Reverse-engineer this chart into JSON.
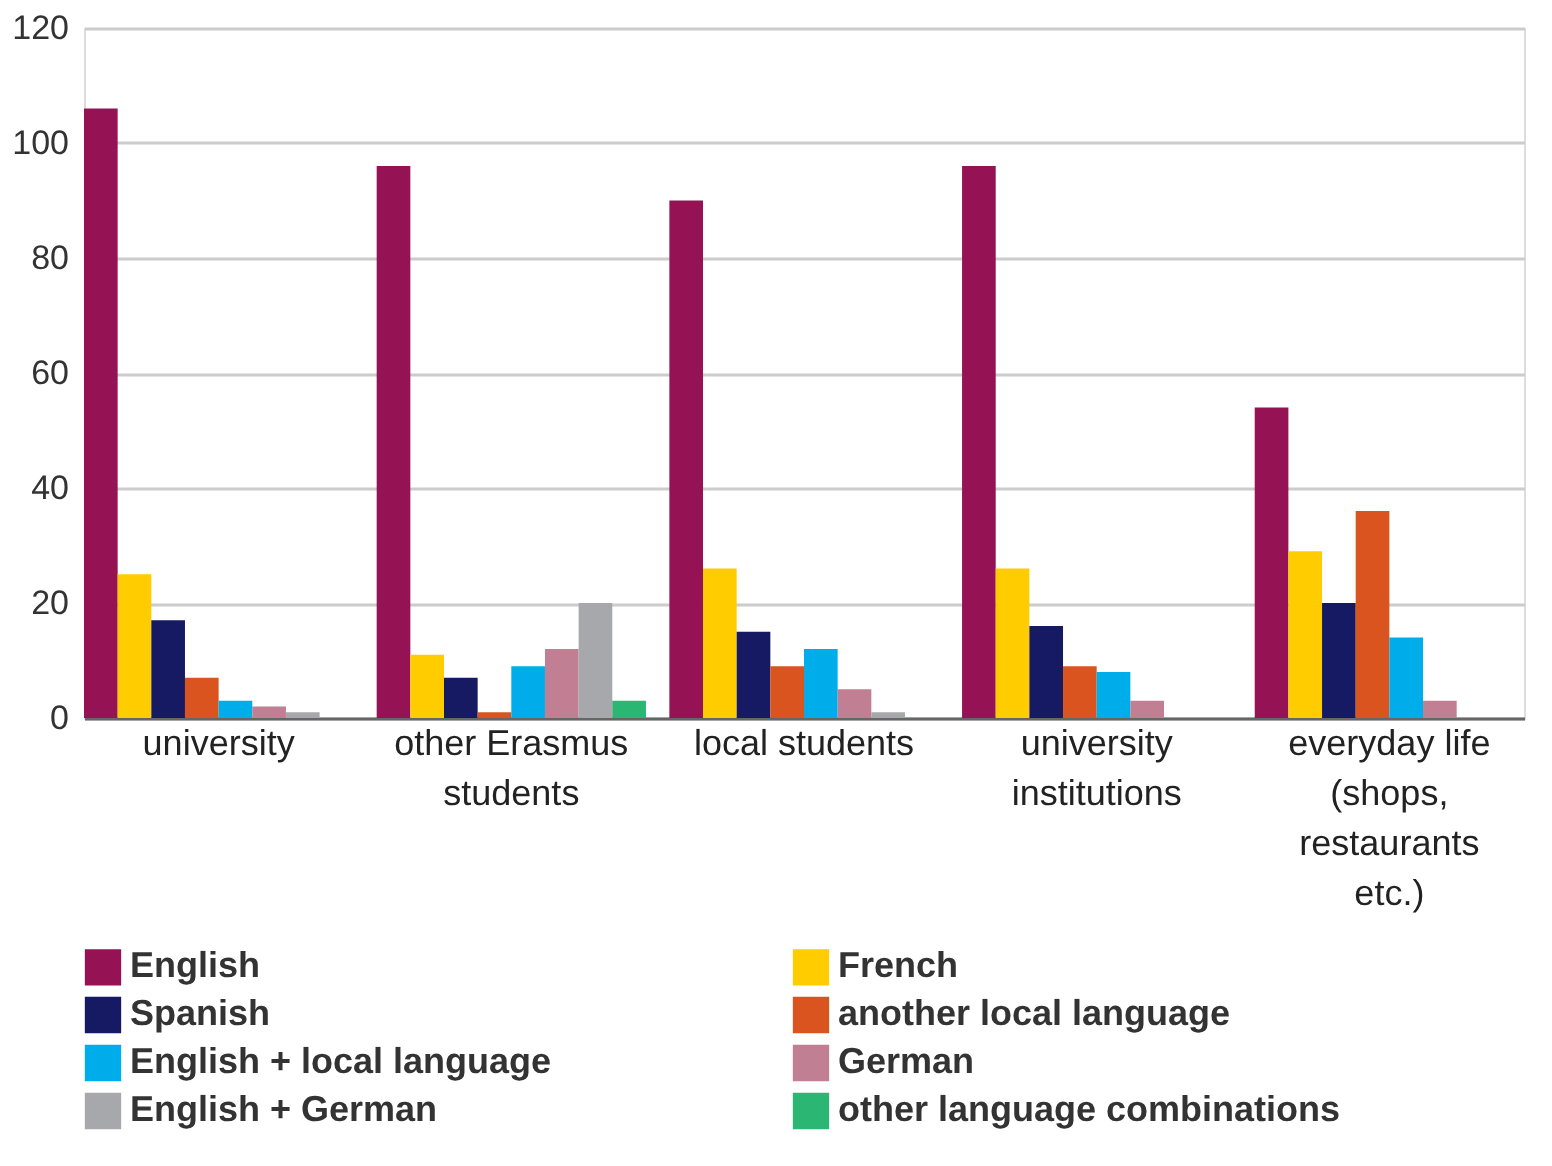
{
  "chart_data": {
    "type": "bar",
    "categories": [
      "university",
      "other Erasmus students",
      "local students",
      "university institutions",
      "everyday life (shops, restaurants etc.)"
    ],
    "series": [
      {
        "name": "English",
        "color": "#951254",
        "values": [
          106,
          96,
          90,
          96,
          54
        ]
      },
      {
        "name": "French",
        "color": "#ffcc00",
        "values": [
          25,
          11,
          26,
          26,
          29
        ]
      },
      {
        "name": "Spanish",
        "color": "#161a63",
        "values": [
          17,
          7,
          15,
          16,
          20
        ]
      },
      {
        "name": "another local language",
        "color": "#d9541f",
        "values": [
          7,
          1,
          9,
          9,
          36
        ]
      },
      {
        "name": "English + local language",
        "color": "#00adeb",
        "values": [
          3,
          9,
          12,
          8,
          14
        ]
      },
      {
        "name": "German",
        "color": "#c07f93",
        "values": [
          2,
          12,
          5,
          3,
          3
        ]
      },
      {
        "name": "English + German",
        "color": "#a7a8ab",
        "values": [
          1,
          20,
          1,
          0,
          0
        ]
      },
      {
        "name": "other language combinations",
        "color": "#2bb673",
        "values": [
          0,
          3,
          0,
          0,
          0
        ]
      }
    ],
    "ylim": [
      0,
      120
    ],
    "yticks": [
      0,
      20,
      40,
      60,
      80,
      100,
      120
    ],
    "grid": "y",
    "legend": "bottom"
  }
}
